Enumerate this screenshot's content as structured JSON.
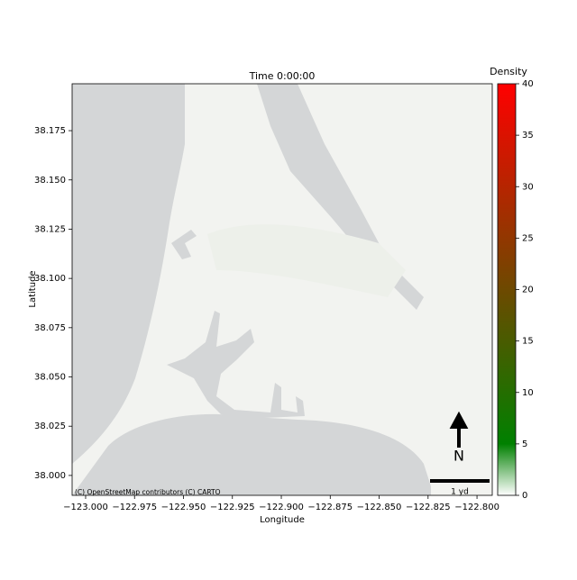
{
  "chart_data": {
    "type": "map",
    "title": "Time 0:00:00",
    "xlabel": "Longitude",
    "ylabel": "Latitude",
    "xlim": [
      -123.0069,
      -122.7922
    ],
    "ylim": [
      37.9899,
      38.1988
    ],
    "xticks": [
      {
        "value": -123.0,
        "label": "−123.000"
      },
      {
        "value": -122.975,
        "label": "−122.975"
      },
      {
        "value": -122.95,
        "label": "−122.950"
      },
      {
        "value": -122.925,
        "label": "−122.925"
      },
      {
        "value": -122.9,
        "label": "−122.900"
      },
      {
        "value": -122.875,
        "label": "−122.875"
      },
      {
        "value": -122.85,
        "label": "−122.850"
      },
      {
        "value": -122.825,
        "label": "−122.825"
      },
      {
        "value": -122.8,
        "label": "−122.800"
      }
    ],
    "yticks": [
      {
        "value": 38.0,
        "label": "38.000"
      },
      {
        "value": 38.025,
        "label": "38.025"
      },
      {
        "value": 38.05,
        "label": "38.050"
      },
      {
        "value": 38.075,
        "label": "38.075"
      },
      {
        "value": 38.1,
        "label": "38.100"
      },
      {
        "value": 38.125,
        "label": "38.125"
      },
      {
        "value": 38.15,
        "label": "38.150"
      },
      {
        "value": 38.175,
        "label": "38.175"
      }
    ],
    "colorbar": {
      "label": "Density",
      "lim": [
        0,
        40
      ],
      "ticks": [
        0,
        5,
        10,
        15,
        20,
        25,
        30,
        35,
        40
      ],
      "colormap": [
        {
          "value": 0,
          "color": "#ffffff"
        },
        {
          "value": 5,
          "color": "#008000"
        },
        {
          "value": 40,
          "color": "#ff0000"
        }
      ]
    },
    "attribution": "(C) OpenStreetMap contributors (C) CARTO",
    "north_label": "N",
    "scale_label": "1 yd"
  }
}
